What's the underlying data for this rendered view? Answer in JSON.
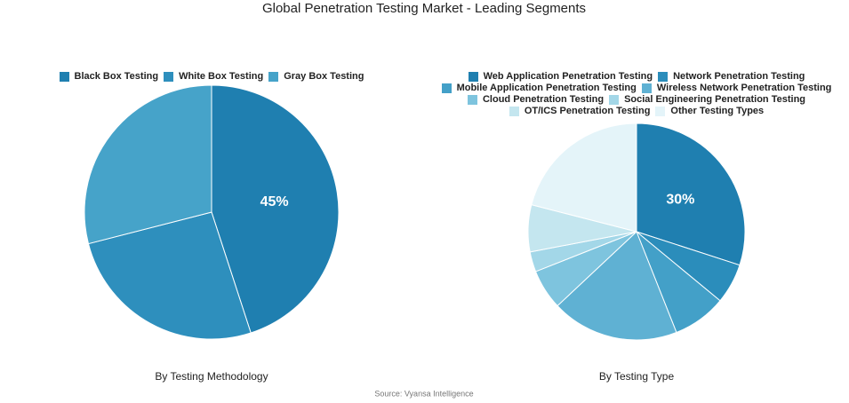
{
  "title": "Global Penetration Testing Market - Leading Segments",
  "source": "Source: Vyansa Intelligence",
  "chart_data": [
    {
      "type": "pie",
      "title": "By Testing Methodology",
      "categories": [
        "Black Box Testing",
        "White Box Testing",
        "Gray Box Testing"
      ],
      "values": [
        45,
        26,
        29
      ],
      "value_labels": [
        "45%",
        null,
        null
      ],
      "colors": [
        "#1f7fb0",
        "#2e8fbd",
        "#46a3c9"
      ]
    },
    {
      "type": "pie",
      "title": "By Testing Type",
      "categories": [
        "Web Application Penetration Testing",
        "Network Penetration Testing",
        "Mobile Application Penetration Testing",
        "Wireless Network Penetration Testing",
        "Cloud Penetration Testing",
        "Social Engineering Penetration Testing",
        "OT/ICS Penetration Testing",
        "Other Testing Types"
      ],
      "values": [
        30,
        6,
        8,
        19,
        6,
        3,
        7,
        21
      ],
      "value_labels": [
        "30%",
        null,
        null,
        null,
        null,
        null,
        null,
        null
      ],
      "colors": [
        "#1f7fb0",
        "#2b8dbb",
        "#43a0c8",
        "#5fb1d3",
        "#7ec4de",
        "#a3d7e8",
        "#c4e6ef",
        "#e4f4f9"
      ]
    }
  ]
}
